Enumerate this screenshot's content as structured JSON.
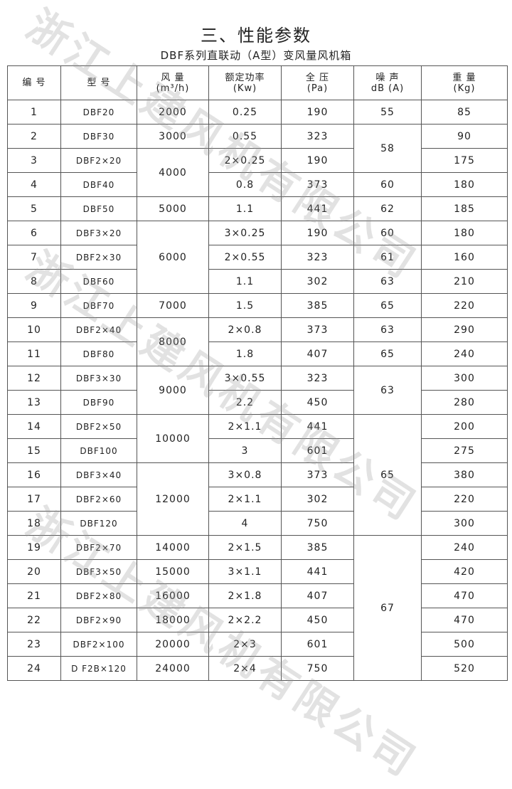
{
  "title": "三、性能参数",
  "subtitle": "DBF系列直联动（A型）变风量风机箱",
  "watermark": "浙江上建风机有限公司",
  "headers": [
    {
      "line1": "编 号",
      "line2": ""
    },
    {
      "line1": "型 号",
      "line2": ""
    },
    {
      "line1": "风 量",
      "line2": "(m³/h)"
    },
    {
      "line1": "额定功率",
      "line2": "(Kw)"
    },
    {
      "line1": "全 压",
      "line2": "(Pa)"
    },
    {
      "line1": "噪 声",
      "line2": "dB (A)"
    },
    {
      "line1": "重 量",
      "line2": "(Kg)"
    }
  ],
  "rows": [
    {
      "no": "1",
      "model": "DBF20",
      "flow": "2000",
      "power": "0.25",
      "pressure": "190",
      "noise": "55",
      "weight": "85"
    },
    {
      "no": "2",
      "model": "DBF30",
      "flow": "3000",
      "power": "0.55",
      "pressure": "323",
      "noise": "58",
      "weight": "90"
    },
    {
      "no": "3",
      "model": "DBF2×20",
      "flow": "4000",
      "power": "2×0.25",
      "pressure": "190",
      "noise": "58",
      "weight": "175"
    },
    {
      "no": "4",
      "model": "DBF40",
      "flow": "4000",
      "power": "0.8",
      "pressure": "373",
      "noise": "60",
      "weight": "180"
    },
    {
      "no": "5",
      "model": "DBF50",
      "flow": "5000",
      "power": "1.1",
      "pressure": "441",
      "noise": "62",
      "weight": "185"
    },
    {
      "no": "6",
      "model": "DBF3×20",
      "flow": "6000",
      "power": "3×0.25",
      "pressure": "190",
      "noise": "60",
      "weight": "180"
    },
    {
      "no": "7",
      "model": "DBF2×30",
      "flow": "6000",
      "power": "2×0.55",
      "pressure": "323",
      "noise": "61",
      "weight": "160"
    },
    {
      "no": "8",
      "model": "DBF60",
      "flow": "6000",
      "power": "1.1",
      "pressure": "302",
      "noise": "63",
      "weight": "210"
    },
    {
      "no": "9",
      "model": "DBF70",
      "flow": "7000",
      "power": "1.5",
      "pressure": "385",
      "noise": "65",
      "weight": "220"
    },
    {
      "no": "10",
      "model": "DBF2×40",
      "flow": "8000",
      "power": "2×0.8",
      "pressure": "373",
      "noise": "63",
      "weight": "290"
    },
    {
      "no": "11",
      "model": "DBF80",
      "flow": "8000",
      "power": "1.8",
      "pressure": "407",
      "noise": "65",
      "weight": "240"
    },
    {
      "no": "12",
      "model": "DBF3×30",
      "flow": "9000",
      "power": "3×0.55",
      "pressure": "323",
      "noise": "63",
      "weight": "300"
    },
    {
      "no": "13",
      "model": "DBF90",
      "flow": "9000",
      "power": "2.2",
      "pressure": "450",
      "noise": "63",
      "weight": "280"
    },
    {
      "no": "14",
      "model": "DBF2×50",
      "flow": "10000",
      "power": "2×1.1",
      "pressure": "441",
      "noise": "65",
      "weight": "200"
    },
    {
      "no": "15",
      "model": "DBF100",
      "flow": "10000",
      "power": "3",
      "pressure": "601",
      "noise": "65",
      "weight": "275"
    },
    {
      "no": "16",
      "model": "DBF3×40",
      "flow": "12000",
      "power": "3×0.8",
      "pressure": "373",
      "noise": "65",
      "weight": "380"
    },
    {
      "no": "17",
      "model": "DBF2×60",
      "flow": "12000",
      "power": "2×1.1",
      "pressure": "302",
      "noise": "65",
      "weight": "220"
    },
    {
      "no": "18",
      "model": "DBF120",
      "flow": "12000",
      "power": "4",
      "pressure": "750",
      "noise": "65",
      "weight": "300"
    },
    {
      "no": "19",
      "model": "DBF2×70",
      "flow": "14000",
      "power": "2×1.5",
      "pressure": "385",
      "noise": "67",
      "weight": "240"
    },
    {
      "no": "20",
      "model": "DBF3×50",
      "flow": "15000",
      "power": "3×1.1",
      "pressure": "441",
      "noise": "67",
      "weight": "420"
    },
    {
      "no": "21",
      "model": "DBF2×80",
      "flow": "16000",
      "power": "2×1.8",
      "pressure": "407",
      "noise": "67",
      "weight": "470"
    },
    {
      "no": "22",
      "model": "DBF2×90",
      "flow": "18000",
      "power": "2×2.2",
      "pressure": "450",
      "noise": "67",
      "weight": "470"
    },
    {
      "no": "23",
      "model": "DBF2×100",
      "flow": "20000",
      "power": "2×3",
      "pressure": "601",
      "noise": "67",
      "weight": "500"
    },
    {
      "no": "24",
      "model": "D F2B×120",
      "flow": "24000",
      "power": "2×4",
      "pressure": "750",
      "noise": "67",
      "weight": "520"
    }
  ]
}
